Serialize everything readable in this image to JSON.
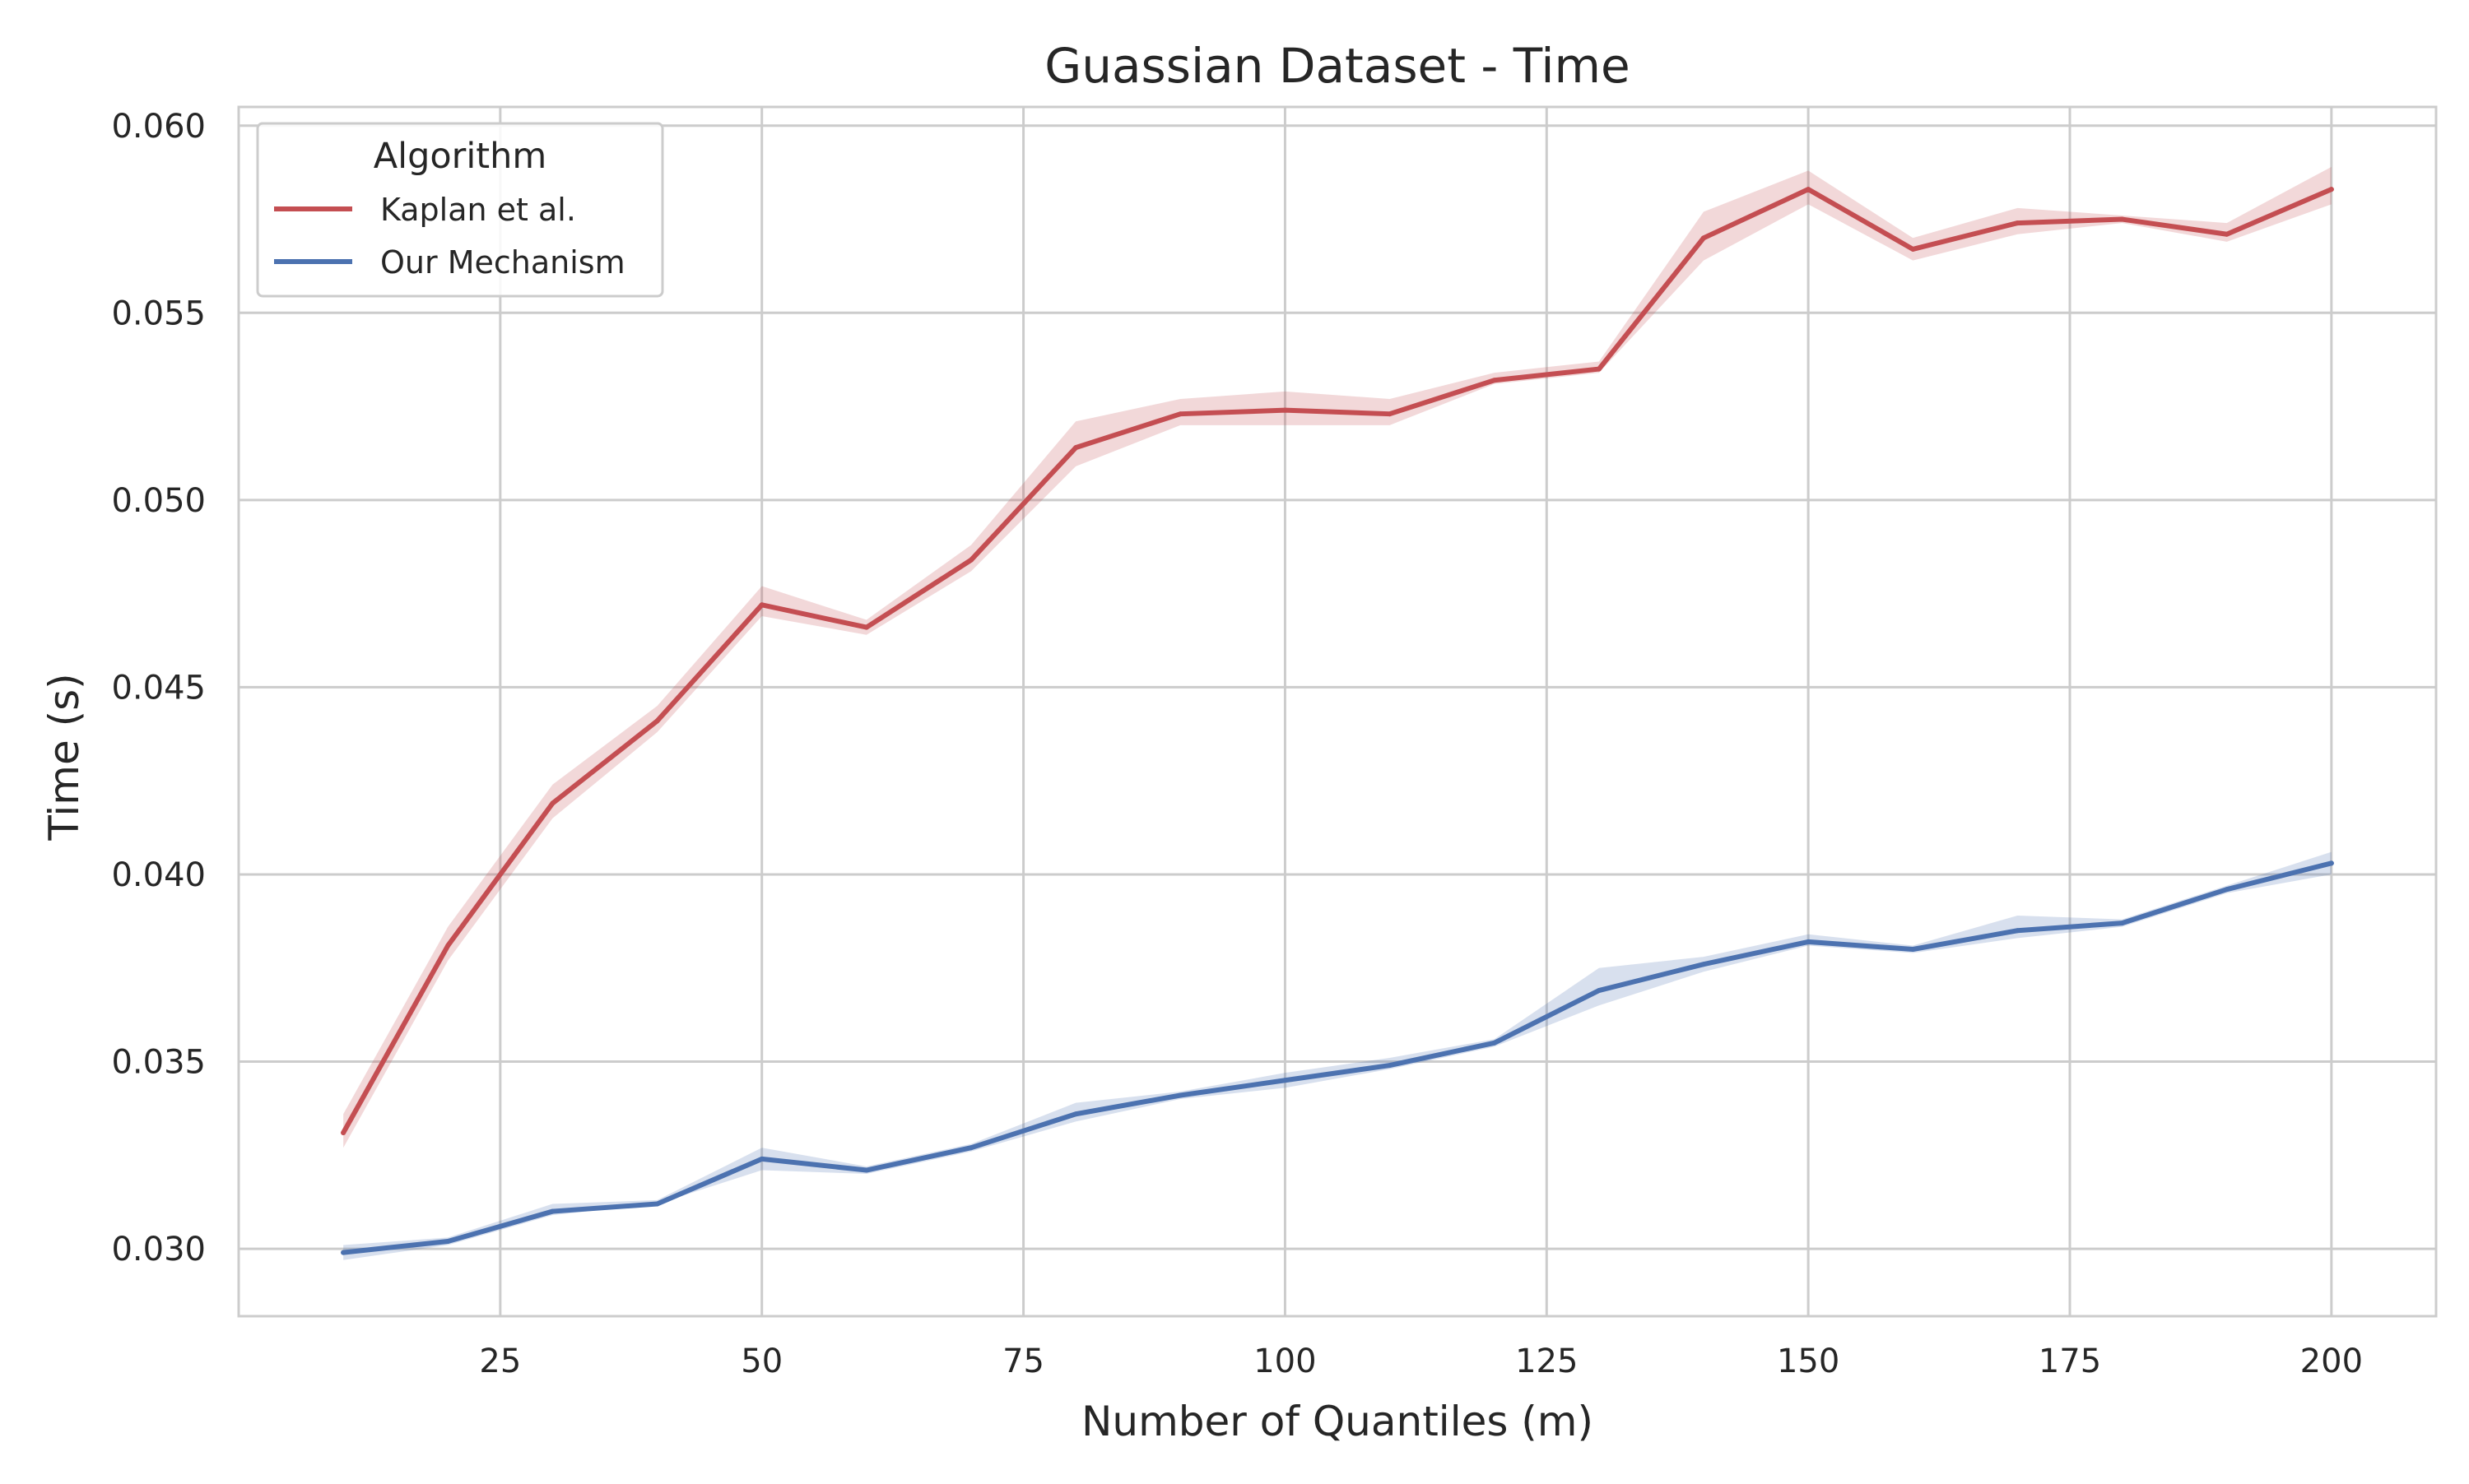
{
  "chart_data": {
    "type": "line",
    "title": "Guassian Dataset - Time",
    "xlabel": "Number of Quantiles (m)",
    "ylabel": "Time (s)",
    "xlim": [
      0,
      210
    ],
    "ylim": [
      0.0282,
      0.0605
    ],
    "xticks": [
      25,
      50,
      75,
      100,
      125,
      150,
      175,
      200
    ],
    "xtick_labels": [
      "25",
      "50",
      "75",
      "100",
      "125",
      "150",
      "175",
      "200"
    ],
    "yticks": [
      0.03,
      0.035,
      0.04,
      0.045,
      0.05,
      0.055,
      0.06
    ],
    "ytick_labels": [
      "0.030",
      "0.035",
      "0.040",
      "0.045",
      "0.050",
      "0.055",
      "0.060"
    ],
    "grid": true,
    "legend": {
      "title": "Algorithm",
      "placement": "top-left"
    },
    "x": [
      10,
      20,
      30,
      40,
      50,
      60,
      70,
      80,
      90,
      100,
      110,
      120,
      130,
      140,
      150,
      160,
      170,
      180,
      190,
      200
    ],
    "series": [
      {
        "name": "Kaplan et al.",
        "color": "#c44e52",
        "values": [
          0.0331,
          0.0381,
          0.0419,
          0.0441,
          0.0472,
          0.0466,
          0.0484,
          0.0514,
          0.0523,
          0.0524,
          0.0523,
          0.0532,
          0.0535,
          0.057,
          0.0583,
          0.0567,
          0.0574,
          0.0575,
          0.0571,
          0.0583
        ],
        "lower": [
          0.0327,
          0.0377,
          0.0415,
          0.0438,
          0.0469,
          0.0464,
          0.0481,
          0.0509,
          0.052,
          0.052,
          0.052,
          0.0531,
          0.0534,
          0.0564,
          0.0579,
          0.0564,
          0.0571,
          0.0574,
          0.0569,
          0.0579
        ],
        "upper": [
          0.0336,
          0.0386,
          0.0424,
          0.0445,
          0.0477,
          0.0468,
          0.0488,
          0.0521,
          0.0527,
          0.0529,
          0.0527,
          0.0534,
          0.0537,
          0.0577,
          0.0588,
          0.057,
          0.0578,
          0.0576,
          0.0574,
          0.0589
        ]
      },
      {
        "name": "Our Mechanism",
        "color": "#4c72b0",
        "values": [
          0.0299,
          0.0302,
          0.031,
          0.0312,
          0.0324,
          0.0321,
          0.0327,
          0.0336,
          0.0341,
          0.0345,
          0.0349,
          0.0355,
          0.0369,
          0.0376,
          0.0382,
          0.038,
          0.0385,
          0.0387,
          0.0396,
          0.0403
        ],
        "lower": [
          0.0297,
          0.0301,
          0.0309,
          0.0312,
          0.0321,
          0.032,
          0.0326,
          0.0334,
          0.034,
          0.0343,
          0.0348,
          0.0354,
          0.0365,
          0.0374,
          0.0381,
          0.0379,
          0.0383,
          0.0386,
          0.0395,
          0.04
        ],
        "upper": [
          0.0301,
          0.0303,
          0.0312,
          0.0313,
          0.0327,
          0.0322,
          0.0328,
          0.0339,
          0.0342,
          0.0347,
          0.0351,
          0.0356,
          0.0375,
          0.0378,
          0.0384,
          0.0381,
          0.0389,
          0.0388,
          0.0397,
          0.0406
        ]
      }
    ]
  }
}
